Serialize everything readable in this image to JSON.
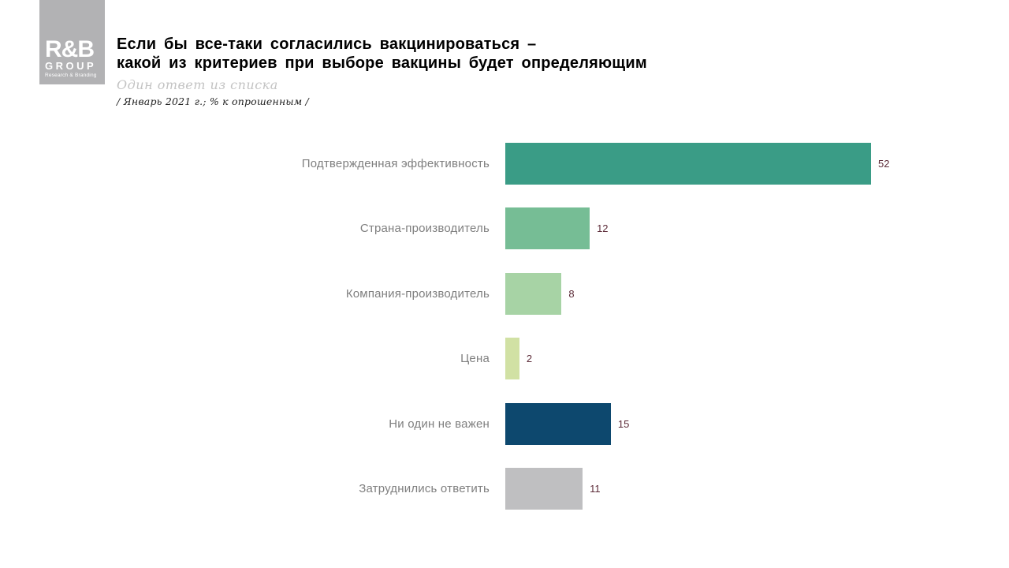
{
  "logo": {
    "line1": "R&B",
    "line2": "GROUP",
    "line3": "Research & Branding",
    "background": "#b2b2b4"
  },
  "header": {
    "title_line1": "Если бы все-таки согласились вакцинироваться –",
    "title_line2": "какой из критериев при выборе вакцины будет определяющим",
    "subtitle": "Один ответ из списка",
    "note": "/ Январь 2021 г.; % к опрошенным /"
  },
  "chart_data": {
    "type": "bar",
    "orientation": "horizontal",
    "title": "Если бы все-таки согласились вакцинироваться – какой из критериев при выборе вакцины будет определяющим",
    "categories": [
      "Подтвержденная эффективность",
      "Страна-производитель",
      "Компания-производитель",
      "Цена",
      "Ни один не важен",
      "Затруднились ответить"
    ],
    "values": [
      52,
      12,
      8,
      2,
      15,
      11
    ],
    "unit": "% к опрошенным",
    "bar_colors": [
      "#3a9c86",
      "#76bd95",
      "#a7d3a5",
      "#d1e1a4",
      "#0d486e",
      "#bfbfc1"
    ],
    "value_label_color": "#5c2b38",
    "category_label_color": "#7f7f7f",
    "xlim": [
      0,
      52
    ],
    "grid": false,
    "legend": false,
    "data_labels": true
  }
}
